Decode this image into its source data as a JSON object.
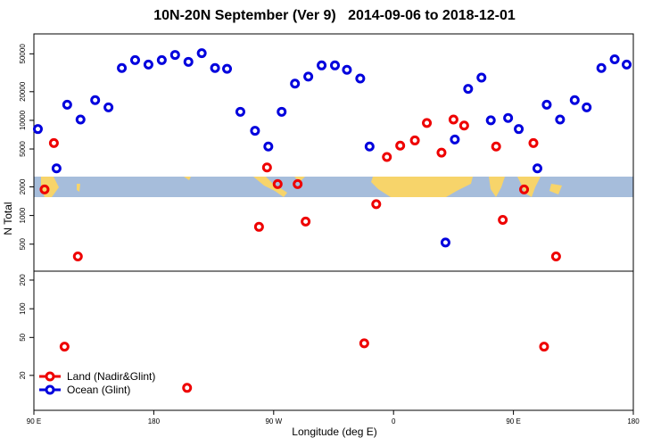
{
  "chart_data": [
    {
      "type": "scatter",
      "title": "10N-20N September (Ver 9)   2014-09-06 to 2018-12-01",
      "ylabel": "N Total",
      "log_y": true,
      "xlim": [
        90,
        540
      ],
      "ylim": [
        260,
        81000
      ],
      "yticks": [
        500,
        1000,
        2000,
        5000,
        10000,
        20000,
        50000
      ],
      "series": [
        {
          "name": "Ocean (Glint)",
          "color": "#0000dd",
          "x": [
            93,
            107,
            115,
            125,
            136,
            146,
            156,
            166,
            176,
            186,
            196,
            206,
            216,
            226,
            235,
            245,
            256,
            266,
            276,
            286,
            296,
            306,
            316,
            325,
            335,
            342,
            399,
            406,
            416,
            426,
            433,
            446,
            454,
            468,
            475,
            485,
            496,
            505,
            516,
            526,
            535
          ],
          "values": [
            8100,
            3130,
            14600,
            10200,
            16300,
            13700,
            35500,
            43000,
            38600,
            43000,
            48700,
            41200,
            50800,
            35500,
            34800,
            12300,
            7760,
            5310,
            12300,
            24300,
            28800,
            37800,
            37800,
            34000,
            27500,
            5310,
            520,
            6290,
            21400,
            28100,
            10000,
            10600,
            8100,
            3130,
            14600,
            10200,
            16300,
            13700,
            35500,
            43800,
            38600
          ]
        },
        {
          "name": "Land (Nadir&Glint)",
          "color": "#ee0000",
          "x": [
            98,
            105,
            123,
            259,
            265,
            273,
            288,
            294,
            347,
            355,
            365,
            376,
            385,
            396,
            405,
            413,
            437,
            442,
            458,
            465,
            482
          ],
          "values": [
            1880,
            5770,
            371,
            760,
            3200,
            2140,
            2140,
            863,
            1315,
            4120,
            5420,
            6150,
            9380,
            4580,
            10200,
            8810,
            5310,
            900,
            1880,
            5770,
            371
          ]
        }
      ]
    },
    {
      "type": "scatter",
      "xlabel": "Longitude (deg E)",
      "log_y": true,
      "legend": "lower left",
      "xlim": [
        90,
        540
      ],
      "ylim": [
        8.6,
        248
      ],
      "xticks": [
        {
          "value": 90,
          "label": "90 E"
        },
        180,
        {
          "value": 270,
          "label": "90 W"
        },
        {
          "value": 360,
          "label": "0"
        },
        {
          "value": 450,
          "label": "90 E"
        },
        {
          "value": 540,
          "label": "180"
        }
      ],
      "yticks": [
        20,
        50,
        100,
        200
      ],
      "series": [
        {
          "name": "Land (Nadir&Glint)",
          "color": "#ee0000",
          "x": [
            113,
            205,
            338,
            473
          ],
          "values": [
            40,
            14.8,
            43.4,
            40
          ]
        },
        {
          "name": "Ocean (Glint)",
          "color": "#0000dd",
          "x": [],
          "values": []
        }
      ]
    }
  ]
}
